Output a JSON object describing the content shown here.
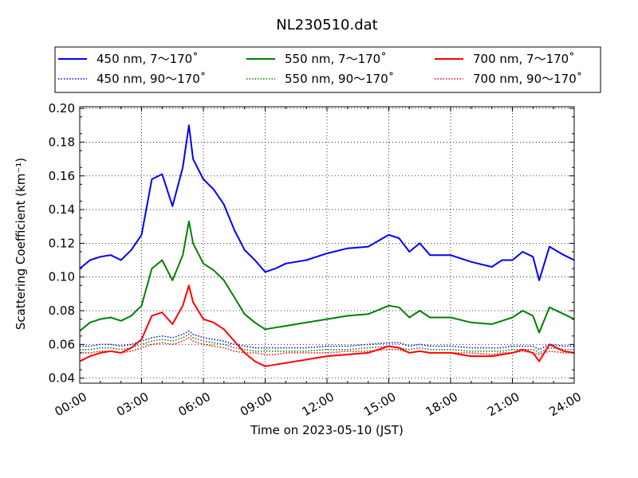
{
  "chart_data": {
    "type": "line",
    "title": "NL230510.dat",
    "xlabel": "Time on 2023-05-10 (JST)",
    "ylabel": "Scattering Coefficient (km⁻¹)",
    "xlim": [
      0,
      24
    ],
    "ylim": [
      0.037,
      0.201
    ],
    "x_ticks": [
      0,
      3,
      6,
      9,
      12,
      15,
      18,
      21,
      24
    ],
    "x_tick_labels": [
      "00:00",
      "03:00",
      "06:00",
      "09:00",
      "12:00",
      "15:00",
      "18:00",
      "21:00",
      "24:00"
    ],
    "y_ticks": [
      0.04,
      0.06,
      0.08,
      0.1,
      0.12,
      0.14,
      0.16,
      0.18,
      0.2
    ],
    "y_tick_labels": [
      "0.04",
      "0.06",
      "0.08",
      "0.10",
      "0.12",
      "0.14",
      "0.16",
      "0.18",
      "0.20"
    ],
    "grid": true,
    "legend_position": "top, above plot",
    "x": [
      0.0,
      0.5,
      1.0,
      1.5,
      2.0,
      2.5,
      3.0,
      3.5,
      4.0,
      4.5,
      5.0,
      5.3,
      5.5,
      6.0,
      6.5,
      7.0,
      7.5,
      8.0,
      8.5,
      9.0,
      9.5,
      10.0,
      11.0,
      12.0,
      13.0,
      14.0,
      15.0,
      15.5,
      16.0,
      16.5,
      17.0,
      18.0,
      19.0,
      20.0,
      20.5,
      21.0,
      21.5,
      22.0,
      22.3,
      22.8,
      23.5,
      24.0
    ],
    "series": [
      {
        "name": "450 nm, 7～170˚",
        "color": "#0000ff",
        "style": "solid",
        "values": [
          0.105,
          0.11,
          0.112,
          0.113,
          0.11,
          0.116,
          0.125,
          0.158,
          0.161,
          0.142,
          0.165,
          0.19,
          0.17,
          0.158,
          0.152,
          0.143,
          0.128,
          0.116,
          0.11,
          0.103,
          0.105,
          0.108,
          0.11,
          0.114,
          0.117,
          0.118,
          0.125,
          0.123,
          0.115,
          0.12,
          0.113,
          0.113,
          0.109,
          0.106,
          0.11,
          0.11,
          0.115,
          0.112,
          0.098,
          0.118,
          0.113,
          0.11
        ]
      },
      {
        "name": "550 nm, 7～170˚",
        "color": "#008000",
        "style": "solid",
        "values": [
          0.068,
          0.073,
          0.075,
          0.076,
          0.074,
          0.077,
          0.083,
          0.105,
          0.11,
          0.098,
          0.113,
          0.133,
          0.12,
          0.108,
          0.104,
          0.098,
          0.088,
          0.078,
          0.073,
          0.069,
          0.07,
          0.071,
          0.073,
          0.075,
          0.077,
          0.078,
          0.083,
          0.082,
          0.076,
          0.08,
          0.076,
          0.076,
          0.073,
          0.072,
          0.074,
          0.076,
          0.08,
          0.077,
          0.067,
          0.082,
          0.078,
          0.075
        ]
      },
      {
        "name": "700 nm, 7～170˚",
        "color": "#ff0000",
        "style": "solid",
        "values": [
          0.05,
          0.053,
          0.055,
          0.056,
          0.055,
          0.058,
          0.063,
          0.077,
          0.079,
          0.072,
          0.083,
          0.095,
          0.085,
          0.075,
          0.073,
          0.069,
          0.062,
          0.055,
          0.05,
          0.047,
          0.048,
          0.049,
          0.051,
          0.053,
          0.054,
          0.055,
          0.059,
          0.058,
          0.055,
          0.056,
          0.055,
          0.055,
          0.053,
          0.053,
          0.054,
          0.055,
          0.057,
          0.055,
          0.05,
          0.06,
          0.056,
          0.055
        ]
      },
      {
        "name": "450 nm, 90～170˚",
        "color": "#0000ff",
        "style": "dotted",
        "values": [
          0.059,
          0.059,
          0.06,
          0.06,
          0.059,
          0.06,
          0.062,
          0.064,
          0.065,
          0.064,
          0.066,
          0.068,
          0.066,
          0.064,
          0.063,
          0.062,
          0.06,
          0.059,
          0.058,
          0.058,
          0.058,
          0.058,
          0.058,
          0.059,
          0.059,
          0.06,
          0.061,
          0.061,
          0.059,
          0.06,
          0.059,
          0.059,
          0.058,
          0.058,
          0.058,
          0.059,
          0.059,
          0.059,
          0.057,
          0.06,
          0.059,
          0.059
        ]
      },
      {
        "name": "550 nm, 90～170˚",
        "color": "#008000",
        "style": "dotted",
        "values": [
          0.057,
          0.057,
          0.058,
          0.058,
          0.057,
          0.058,
          0.06,
          0.062,
          0.063,
          0.062,
          0.064,
          0.066,
          0.064,
          0.062,
          0.061,
          0.06,
          0.058,
          0.057,
          0.056,
          0.056,
          0.056,
          0.056,
          0.056,
          0.057,
          0.057,
          0.058,
          0.059,
          0.058,
          0.057,
          0.058,
          0.057,
          0.057,
          0.056,
          0.056,
          0.056,
          0.057,
          0.057,
          0.057,
          0.055,
          0.058,
          0.057,
          0.057
        ]
      },
      {
        "name": "700 nm, 90～170˚",
        "color": "#ff0000",
        "style": "dotted",
        "values": [
          0.055,
          0.055,
          0.056,
          0.056,
          0.055,
          0.056,
          0.058,
          0.06,
          0.061,
          0.06,
          0.062,
          0.064,
          0.062,
          0.06,
          0.059,
          0.058,
          0.056,
          0.055,
          0.055,
          0.054,
          0.054,
          0.055,
          0.055,
          0.055,
          0.056,
          0.056,
          0.057,
          0.057,
          0.055,
          0.056,
          0.055,
          0.055,
          0.055,
          0.054,
          0.055,
          0.055,
          0.056,
          0.055,
          0.054,
          0.056,
          0.055,
          0.055
        ]
      }
    ],
    "legend_order": [
      0,
      3,
      1,
      4,
      2,
      5
    ]
  }
}
